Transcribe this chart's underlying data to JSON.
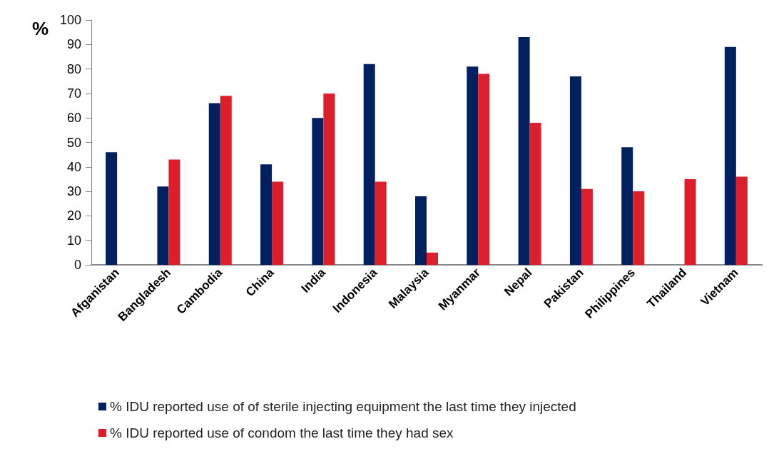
{
  "chart_data": {
    "type": "bar",
    "ylabel": "%",
    "categories": [
      "Afganistan",
      "Bangladesh",
      "Cambodia",
      "China",
      "India",
      "Indonesia",
      "Malaysia",
      "Myanmar",
      "Nepal",
      "Pakistan",
      "Philippines",
      "Thailand",
      "Vietnam"
    ],
    "series": [
      {
        "name": "% IDU reported use of of sterile injecting equipment the last time they injected",
        "color": "#002060",
        "values": [
          46,
          32,
          66,
          41,
          60,
          82,
          28,
          81,
          93,
          77,
          48,
          null,
          89
        ]
      },
      {
        "name": "% IDU reported use of condom the last time they had sex",
        "color": "#dc1f2b",
        "values": [
          null,
          43,
          69,
          34,
          70,
          34,
          5,
          78,
          58,
          31,
          30,
          35,
          36
        ]
      }
    ],
    "ylim": [
      0,
      100
    ],
    "yticks": [
      0,
      10,
      20,
      30,
      40,
      50,
      60,
      70,
      80,
      90,
      100
    ],
    "grid": false,
    "legend": "bottom"
  }
}
